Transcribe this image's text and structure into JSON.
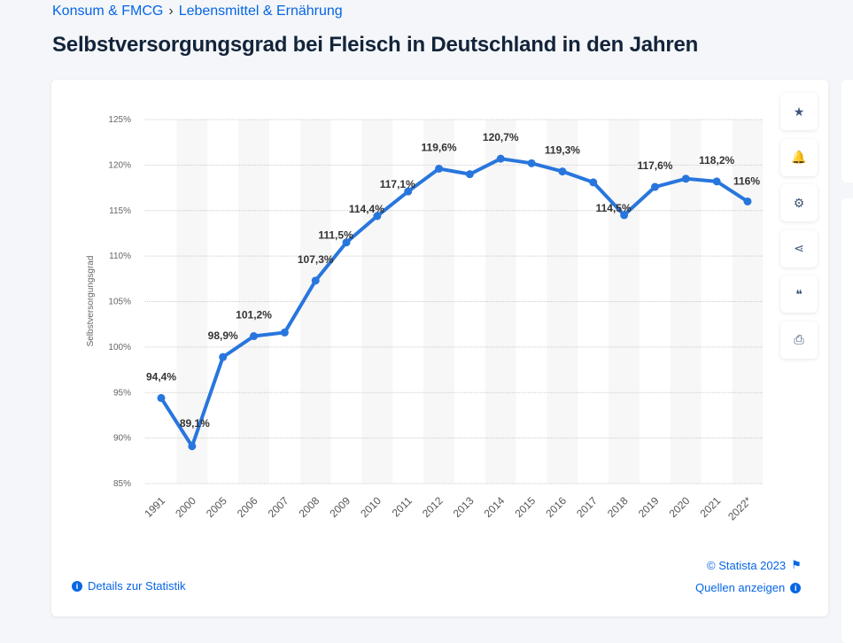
{
  "breadcrumb": [
    "Konsum & FMCG",
    "Lebensmittel & Ernährung"
  ],
  "title": "Selbstversorgungsgrad bei Fleisch in Deutschland in den Jahren",
  "tools": [
    {
      "icon": "star-icon",
      "glyph": "★"
    },
    {
      "icon": "bell-icon",
      "glyph": "🔔"
    },
    {
      "icon": "gear-icon",
      "glyph": "⚙"
    },
    {
      "icon": "share-icon",
      "glyph": "⋖"
    },
    {
      "icon": "quote-icon",
      "glyph": "❝"
    },
    {
      "icon": "print-icon",
      "glyph": "⎙"
    }
  ],
  "footer": {
    "copyright": "© Statista 2023",
    "sources": "Quellen anzeigen",
    "details": "Details zur Statistik"
  },
  "chart_data": {
    "type": "line",
    "ylabel": "Selbstversorgungsgrad",
    "ylim": [
      85,
      125
    ],
    "yticks": [
      "85%",
      "90%",
      "95%",
      "100%",
      "105%",
      "110%",
      "115%",
      "120%",
      "125%"
    ],
    "grid": true,
    "color": "#2876dd",
    "categories": [
      "1991",
      "2000",
      "2005",
      "2006",
      "2007",
      "2008",
      "2009",
      "2010",
      "2011",
      "2012",
      "2013",
      "2014",
      "2015",
      "2016",
      "2017",
      "2018",
      "2019",
      "2020",
      "2021",
      "2022*"
    ],
    "values": [
      94.4,
      89.1,
      98.9,
      101.2,
      101.6,
      107.3,
      111.5,
      114.4,
      117.1,
      119.6,
      119.0,
      120.7,
      120.2,
      119.3,
      118.1,
      114.5,
      117.6,
      118.5,
      118.2,
      116
    ],
    "data_labels": [
      "94,4%",
      "89,1%",
      "98,9%",
      "101,2%",
      "",
      "107,3%",
      "111,5%",
      "114,4%",
      "117,1%",
      "119,6%",
      "",
      "120,7%",
      "",
      "119,3%",
      "",
      "114,5%",
      "117,6%",
      "",
      "118,2%",
      "116%"
    ]
  }
}
